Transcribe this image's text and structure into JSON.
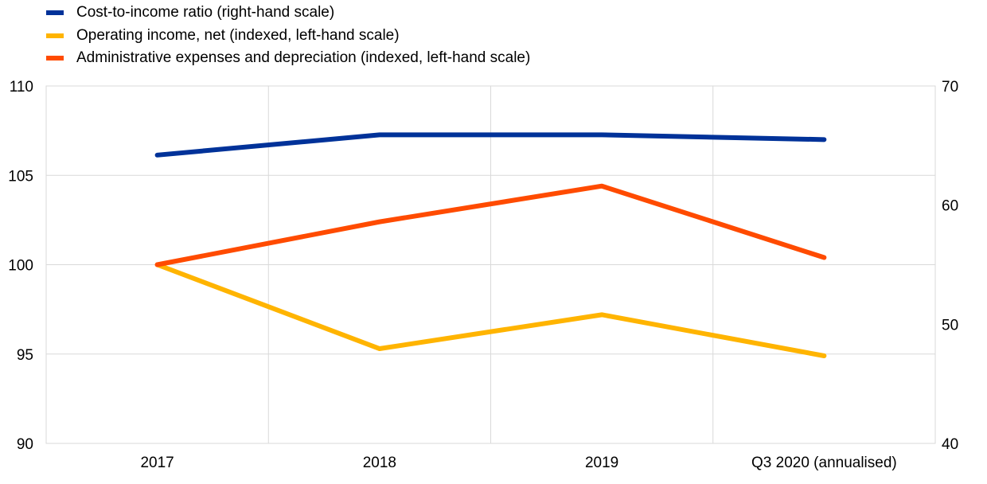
{
  "chart_data": {
    "type": "line",
    "title": "",
    "categories": [
      "2017",
      "2018",
      "2019",
      "Q3 2020 (annualised)"
    ],
    "series": [
      {
        "name": "Cost-to-income ratio (right-hand scale)",
        "axis": "right",
        "color": "#003299",
        "values": [
          64.2,
          65.9,
          65.9,
          65.5
        ]
      },
      {
        "name": "Operating income, net (indexed, left-hand scale)",
        "axis": "left",
        "color": "#FFB400",
        "values": [
          100.0,
          95.3,
          97.2,
          94.9
        ]
      },
      {
        "name": "Administrative expenses and depreciation (indexed, left-hand scale)",
        "axis": "left",
        "color": "#FF4B00",
        "values": [
          100.0,
          102.4,
          104.4,
          100.4
        ]
      }
    ],
    "y_left": {
      "min": 90,
      "max": 110,
      "ticks": [
        90,
        95,
        100,
        105,
        110
      ]
    },
    "y_right": {
      "min": 40,
      "max": 70,
      "ticks": [
        40,
        50,
        60,
        70
      ]
    },
    "grid": true,
    "legend_position": "top-left"
  }
}
